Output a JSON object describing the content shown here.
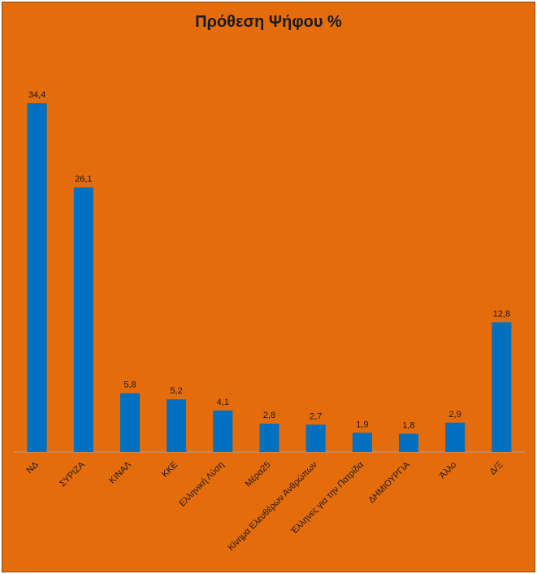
{
  "chart_data": {
    "type": "bar",
    "title": "Πρόθεση Ψήφου %",
    "categories": [
      "ΝΔ",
      "ΣΥΡΙΖΑ",
      "ΚΙΝΑΛ",
      "ΚΚΕ",
      "Ελληνική Λύση",
      "Μέρα25",
      "Κίνημα Ελευθέρων Ανθρώπων",
      "Έλληνες για την Πατρίδα",
      "ΔΗΜΙΟΥΡΓΙΑ",
      "Άλλο",
      "Δ/Ξ"
    ],
    "values": [
      34.4,
      26.1,
      5.8,
      5.2,
      4.1,
      2.8,
      2.7,
      1.9,
      1.8,
      2.9,
      12.8
    ],
    "data_labels": [
      "34,4",
      "26,1",
      "5,8",
      "5,2",
      "4,1",
      "2,8",
      "2,7",
      "1,9",
      "1,8",
      "2,9",
      "12,8"
    ],
    "xlabel": "",
    "ylabel": "",
    "grid": false,
    "legend": "none",
    "colors": {
      "bar": "#0070c0",
      "background": "#e46c0a",
      "axis": "#a6a6a6",
      "text": "#1a1a1a"
    }
  }
}
